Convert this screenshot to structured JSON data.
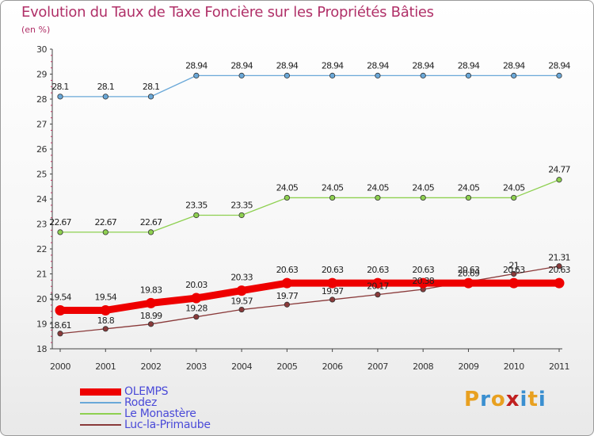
{
  "title": "Evolution du Taux de Taxe Foncière sur les Propriétés Bâties",
  "subtitle": "(en %)",
  "logo": {
    "text": "Proxiti",
    "colors": [
      "#e8a020",
      "#3a8fd0",
      "#e8a020",
      "#c02020",
      "#3a8fd0",
      "#e8a020",
      "#3a8fd0"
    ]
  },
  "chart_data": {
    "type": "line",
    "x": [
      "2000",
      "2001",
      "2002",
      "2003",
      "2004",
      "2005",
      "2006",
      "2007",
      "2008",
      "2009",
      "2010",
      "2011"
    ],
    "ylim": [
      18,
      30
    ],
    "yticks": [
      "18",
      "19",
      "20",
      "21",
      "22",
      "23",
      "24",
      "25",
      "26",
      "27",
      "28",
      "29",
      "30"
    ],
    "grid": false,
    "legend_position": "bottom-left",
    "series": [
      {
        "name": "OLEMPS",
        "color": "#ee0000",
        "values": [
          19.54,
          19.54,
          19.83,
          20.03,
          20.33,
          20.63,
          20.63,
          20.63,
          20.63,
          20.63,
          20.63,
          20.63
        ],
        "labels": [
          "19.54",
          "19.54",
          "19.83",
          "20.03",
          "20.33",
          "20.63",
          "20.63",
          "20.63",
          "20.63",
          "20.63",
          "20.63",
          "20.63"
        ]
      },
      {
        "name": "Rodez",
        "color": "#6aa8d8",
        "values": [
          28.1,
          28.1,
          28.1,
          28.94,
          28.94,
          28.94,
          28.94,
          28.94,
          28.94,
          28.94,
          28.94,
          28.94
        ],
        "labels": [
          "28.1",
          "28.1",
          "28.1",
          "28.94",
          "28.94",
          "28.94",
          "28.94",
          "28.94",
          "28.94",
          "28.94",
          "28.94",
          "28.94"
        ]
      },
      {
        "name": "Le Monastère",
        "color": "#8ed050",
        "values": [
          22.67,
          22.67,
          22.67,
          23.35,
          23.35,
          24.05,
          24.05,
          24.05,
          24.05,
          24.05,
          24.05,
          24.77
        ],
        "labels": [
          "22.67",
          "22.67",
          "22.67",
          "23.35",
          "23.35",
          "24.05",
          "24.05",
          "24.05",
          "24.05",
          "24.05",
          "24.05",
          "24.77"
        ]
      },
      {
        "name": "Luc-la-Primaube",
        "color": "#8a3a3a",
        "values": [
          18.61,
          18.8,
          18.99,
          19.28,
          19.57,
          19.77,
          19.97,
          20.17,
          20.38,
          20.69,
          21,
          21.31
        ],
        "labels": [
          "18.61",
          "18.8",
          "18.99",
          "19.28",
          "19.57",
          "19.77",
          "19.97",
          "20.17",
          "20.38",
          "20.69",
          "21",
          "21.31"
        ]
      }
    ]
  }
}
